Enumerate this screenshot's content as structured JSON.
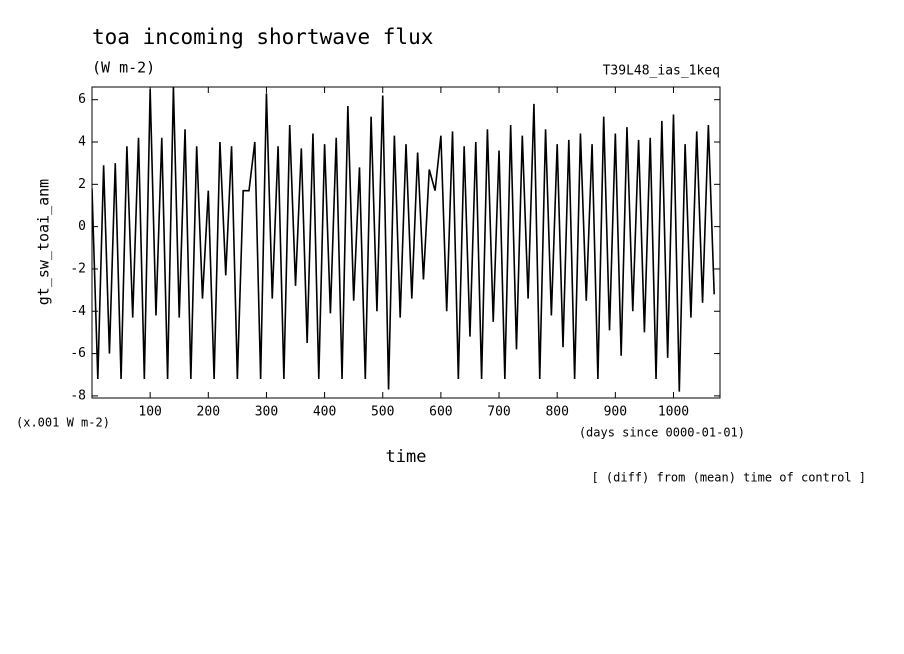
{
  "chart_data": {
    "type": "line",
    "title": "toa incoming shortwave flux",
    "subtitle": "(W m-2)",
    "run_label": "T39L48_ias_1keq",
    "y_label": "gt_sw_toai_anm",
    "y_unit_note": "(x.001 W m-2)",
    "x_label": "time",
    "x_unit_note": "(days since 0000-01-01)",
    "footnote": "[ (diff) from (mean) time of control ]",
    "color": "#000000",
    "xlim": [
      0,
      1080
    ],
    "ylim": [
      -8.1,
      6.6
    ],
    "xticks": [
      100,
      200,
      300,
      400,
      500,
      600,
      700,
      800,
      900,
      1000
    ],
    "yticks": [
      -8,
      -6,
      -4,
      -2,
      0,
      2,
      4,
      6
    ],
    "x": [
      0,
      10,
      20,
      30,
      40,
      50,
      60,
      70,
      80,
      90,
      100,
      110,
      120,
      130,
      140,
      150,
      160,
      170,
      180,
      190,
      200,
      210,
      220,
      230,
      240,
      250,
      260,
      270,
      280,
      290,
      300,
      310,
      320,
      330,
      340,
      350,
      360,
      370,
      380,
      390,
      400,
      410,
      420,
      430,
      440,
      450,
      460,
      470,
      480,
      490,
      500,
      510,
      520,
      530,
      540,
      550,
      560,
      570,
      580,
      590,
      600,
      610,
      620,
      630,
      640,
      650,
      660,
      670,
      680,
      690,
      700,
      710,
      720,
      730,
      740,
      750,
      760,
      770,
      780,
      790,
      800,
      810,
      820,
      830,
      840,
      850,
      860,
      870,
      880,
      890,
      900,
      910,
      920,
      930,
      940,
      950,
      960,
      970,
      980,
      990,
      1000,
      1010,
      1020,
      1030,
      1040,
      1050,
      1060,
      1070
    ],
    "values": [
      1.8,
      -7.2,
      2.9,
      -6.0,
      3.0,
      -7.2,
      3.8,
      -4.3,
      4.2,
      -7.2,
      6.5,
      -4.2,
      4.2,
      -7.2,
      6.6,
      -4.3,
      4.6,
      -7.2,
      3.8,
      -3.4,
      1.7,
      -7.2,
      4.0,
      -2.3,
      3.8,
      -7.2,
      1.7,
      1.7,
      4.0,
      -7.2,
      6.3,
      -3.4,
      3.8,
      -7.2,
      4.8,
      -2.8,
      3.7,
      -5.5,
      4.4,
      -7.2,
      3.9,
      -4.1,
      4.2,
      -7.2,
      5.7,
      -3.5,
      2.8,
      -7.2,
      5.2,
      -4.0,
      6.2,
      -7.7,
      4.3,
      -4.3,
      3.9,
      -3.4,
      3.5,
      -2.5,
      2.7,
      1.7,
      4.3,
      -4.0,
      4.5,
      -7.2,
      3.8,
      -5.2,
      4.0,
      -7.2,
      4.6,
      -4.5,
      3.6,
      -7.2,
      4.8,
      -5.8,
      4.3,
      -3.4,
      5.8,
      -7.2,
      4.6,
      -4.2,
      3.9,
      -5.7,
      4.1,
      -7.2,
      4.4,
      -3.5,
      3.9,
      -7.2,
      5.2,
      -4.9,
      4.4,
      -6.1,
      4.7,
      -4.0,
      4.1,
      -5.0,
      4.2,
      -7.2,
      5.0,
      -6.2,
      5.3,
      -7.8,
      3.9,
      -4.3,
      4.5,
      -3.6,
      4.8,
      -3.2
    ]
  }
}
